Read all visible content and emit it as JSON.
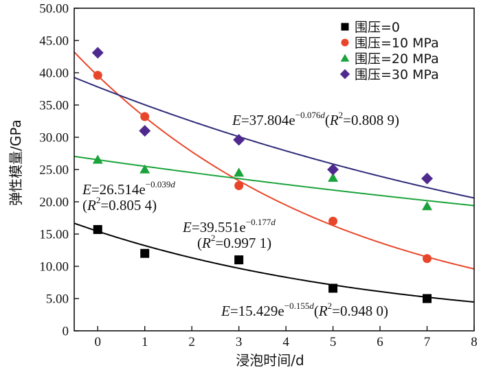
{
  "chart_data": {
    "type": "scatter",
    "xlabel": "浸泡时间/d",
    "ylabel": "弹性模量/GPa",
    "xlim": [
      -0.5,
      8
    ],
    "ylim": [
      0,
      50
    ],
    "x_ticks": [
      "0",
      "1",
      "2",
      "3",
      "4",
      "5",
      "6",
      "7",
      "8"
    ],
    "y_ticks": [
      "0",
      "5.00",
      "10.00",
      "15.00",
      "20.00",
      "25.00",
      "30.00",
      "35.00",
      "40.00",
      "45.00",
      "50.00"
    ],
    "legend_position": "top-right",
    "series": [
      {
        "name": "围压=0",
        "color": "#000000",
        "marker": "square",
        "x": [
          0,
          1,
          3,
          5,
          7
        ],
        "y": [
          15.7,
          12.0,
          11.0,
          6.6,
          5.0
        ],
        "fit": {
          "a": 15.429,
          "b": 0.155,
          "color": "#000000"
        },
        "annotation": {
          "E": "E",
          "eq": "=15.429e",
          "exp": "−0.155",
          "expvar": "d",
          "open": "(",
          "R": "R",
          "sq": "2",
          "rest": "=0.948 0)"
        }
      },
      {
        "name": "围压=10 MPa",
        "color": "#e8462a",
        "marker": "circle",
        "x": [
          0,
          1,
          3,
          5,
          7
        ],
        "y": [
          39.6,
          33.2,
          22.5,
          17.0,
          11.2
        ],
        "fit": {
          "a": 39.551,
          "b": 0.177,
          "color": "#e8462a"
        },
        "annotation": {
          "E": "E",
          "eq": "=39.551e",
          "exp": "−0.177",
          "expvar": "d",
          "open": "(",
          "R": "R",
          "sq": "2",
          "rest": "=0.997 1)"
        }
      },
      {
        "name": "围压=20 MPa",
        "color": "#1aa33a",
        "marker": "triangle",
        "x": [
          0,
          1,
          3,
          5,
          7
        ],
        "y": [
          26.5,
          25.0,
          24.5,
          23.7,
          19.3
        ],
        "fit": {
          "a": 26.514,
          "b": 0.039,
          "color": "#1aa33a"
        },
        "annotation": {
          "E": "E",
          "eq": "=26.514e",
          "exp": "−0.039",
          "expvar": "d",
          "open": "(",
          "R": "R",
          "sq": "2",
          "rest": "=0.805 4)"
        }
      },
      {
        "name": "围压=30 MPa",
        "color": "#4f2a8e",
        "marker": "diamond",
        "x": [
          0,
          1,
          3,
          5,
          7
        ],
        "y": [
          43.1,
          31.0,
          29.6,
          25.0,
          23.6
        ],
        "fit": {
          "a": 37.804,
          "b": 0.076,
          "color": "#2e2a78"
        },
        "annotation": {
          "E": "E",
          "eq": "=37.804e",
          "exp": "−0.076",
          "expvar": "d",
          "open": "(",
          "R": "R",
          "sq": "2",
          "rest": "=0.808 9)"
        }
      }
    ]
  }
}
